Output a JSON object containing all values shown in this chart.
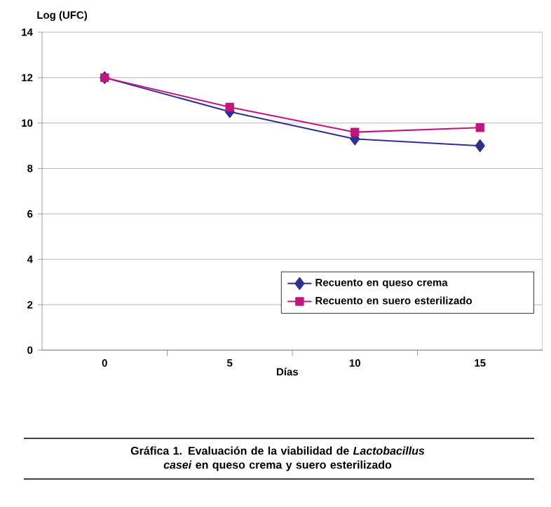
{
  "chart_data": {
    "type": "line",
    "title": "Gráfica 1. Evaluación de la viabilidad de *Lactobacillus casei* en queso crema y suero esterilizado",
    "xlabel": "Días",
    "ylabel": "Log (UFC)",
    "categories": [
      "0",
      "5",
      "10",
      "15"
    ],
    "series": [
      {
        "name": "Recuento en queso crema",
        "color": "#2e3192",
        "marker": "diamond",
        "values": [
          12,
          10.5,
          9.3,
          9.0
        ]
      },
      {
        "name": "Recuento en suero esterilizado",
        "color": "#c0177f",
        "marker": "square",
        "values": [
          12,
          10.7,
          9.6,
          9.8
        ]
      }
    ],
    "ylim": [
      0,
      14
    ],
    "yticks": [
      0,
      2,
      4,
      6,
      8,
      10,
      12,
      14
    ],
    "grid": "y",
    "legend": "bottom right"
  }
}
